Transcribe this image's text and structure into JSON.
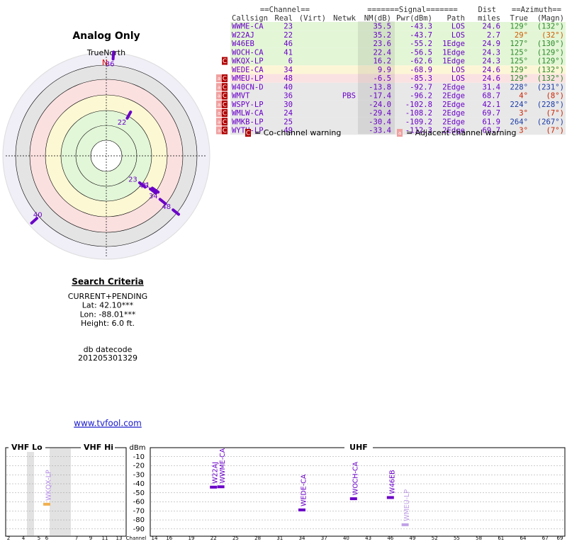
{
  "left": {
    "title": "Analog Only",
    "north_label": "TrueNorth",
    "north": "N",
    "polar": {
      "color": "#6a00c8",
      "points": [
        {
          "label": "36",
          "azimuth": 4,
          "nm": -17.4
        },
        {
          "label": "22",
          "azimuth": 29,
          "nm": 35.2
        },
        {
          "label": "23",
          "azimuth": 129,
          "nm": 35.5
        },
        {
          "label": "46",
          "azimuth": 127,
          "nm": 23.6
        },
        {
          "label": "41",
          "azimuth": 125,
          "nm": 22.4
        },
        {
          "label": "34",
          "azimuth": 129,
          "nm": 9.9
        },
        {
          "label": "48",
          "azimuth": 129,
          "nm": -6.5
        },
        {
          "label": "40",
          "azimuth": 228,
          "nm": -13.8
        }
      ]
    },
    "criteria": {
      "heading": "Search Criteria",
      "lines": [
        "CURRENT+PENDING",
        "Lat: 42.10***",
        "Lon: -88.01***",
        "Height: 6.0 ft."
      ]
    },
    "datecode": {
      "label": "db datecode",
      "value": "201205301329"
    },
    "link": "www.tvfool.com"
  },
  "table": {
    "group_headers": [
      "==Channel==",
      "=======Signal=======",
      "Dist",
      "==Azimuth=="
    ],
    "columns": [
      "Callsign",
      "Real",
      "(Virt)",
      "Netwk",
      "NM(dB)",
      "Pwr(dBm)",
      "Path",
      "miles",
      "True",
      "(Magn)"
    ],
    "rows": [
      {
        "callsign": "WWME-CA",
        "real": "23",
        "nm": "35.5",
        "pwr": "-43.3",
        "path": "LOS",
        "dist": "24.6",
        "true": "129°",
        "magn": "(132°)",
        "bg": "#e3f6d6",
        "az_color": "#2a8a2a"
      },
      {
        "callsign": "W22AJ",
        "real": "22",
        "nm": "35.2",
        "pwr": "-43.7",
        "path": "LOS",
        "dist": "2.7",
        "true": "29°",
        "magn": "(32°)",
        "bg": "#e3f6d6",
        "az_color": "#d05a00"
      },
      {
        "callsign": "W46EB",
        "real": "46",
        "nm": "23.6",
        "pwr": "-55.2",
        "path": "1Edge",
        "dist": "24.9",
        "true": "127°",
        "magn": "(130°)",
        "bg": "#e3f6d6",
        "az_color": "#2a8a2a"
      },
      {
        "callsign": "WOCH-CA",
        "real": "41",
        "nm": "22.4",
        "pwr": "-56.5",
        "path": "1Edge",
        "dist": "24.3",
        "true": "125°",
        "magn": "(129°)",
        "bg": "#e3f6d6",
        "az_color": "#2a8a2a"
      },
      {
        "callsign": "WKQX-LP",
        "real": "6",
        "nm": "16.2",
        "pwr": "-62.6",
        "path": "1Edge",
        "dist": "24.3",
        "true": "125°",
        "magn": "(129°)",
        "bg": "#e3f6d6",
        "az_color": "#2a8a2a",
        "warnings": [
          "C"
        ]
      },
      {
        "callsign": "WEDE-CA",
        "real": "34",
        "nm": "9.9",
        "pwr": "-68.9",
        "path": "LOS",
        "dist": "24.6",
        "true": "129°",
        "magn": "(132°)",
        "bg": "#fdf6d6",
        "az_color": "#2a8a2a"
      },
      {
        "callsign": "WMEU-LP",
        "real": "48",
        "nm": "-6.5",
        "pwr": "-85.3",
        "path": "LOS",
        "dist": "24.6",
        "true": "129°",
        "magn": "(132°)",
        "bg": "#fbe2e2",
        "az_color": "#2a8a2a",
        "warnings": [
          "a",
          "C"
        ]
      },
      {
        "callsign": "W40CN-D",
        "real": "40",
        "nm": "-13.8",
        "pwr": "-92.7",
        "path": "2Edge",
        "dist": "31.4",
        "true": "228°",
        "magn": "(231°)",
        "bg": "#e8e8e8",
        "az_color": "#1a3aa8",
        "warnings": [
          "a",
          "C"
        ]
      },
      {
        "callsign": "WMVT",
        "real": "36",
        "netwk": "PBS",
        "nm": "-17.4",
        "pwr": "-96.2",
        "path": "2Edge",
        "dist": "68.7",
        "true": "4°",
        "magn": "(8°)",
        "bg": "#e8e8e8",
        "az_color": "#cc2200",
        "warnings": [
          "a",
          "C"
        ]
      },
      {
        "callsign": "WSPY-LP",
        "real": "30",
        "nm": "-24.0",
        "pwr": "-102.8",
        "path": "2Edge",
        "dist": "42.1",
        "true": "224°",
        "magn": "(228°)",
        "bg": "#e8e8e8",
        "az_color": "#1a3aa8",
        "warnings": [
          "a",
          "C"
        ]
      },
      {
        "callsign": "WMLW-CA",
        "real": "24",
        "nm": "-29.4",
        "pwr": "-108.2",
        "path": "2Edge",
        "dist": "69.7",
        "true": "3°",
        "magn": "(7°)",
        "bg": "#e8e8e8",
        "az_color": "#cc2200",
        "warnings": [
          "a",
          "C"
        ]
      },
      {
        "callsign": "WMKB-LP",
        "real": "25",
        "nm": "-30.4",
        "pwr": "-109.2",
        "path": "2Edge",
        "dist": "61.9",
        "true": "264°",
        "magn": "(267°)",
        "bg": "#e8e8e8",
        "az_color": "#1a3aa8",
        "warnings": [
          "a",
          "C"
        ]
      },
      {
        "callsign": "WYTU-LP",
        "real": "49",
        "nm": "-33.4",
        "pwr": "-112.3",
        "path": "2Edge",
        "dist": "69.7",
        "true": "3°",
        "magn": "(7°)",
        "bg": "#e8e8e8",
        "az_color": "#cc2200",
        "warnings": [
          "a",
          "C"
        ]
      }
    ],
    "legend": [
      {
        "icon": "C",
        "text": "= Co-channel warning"
      },
      {
        "icon": "a",
        "text": "= Adjacent channel warning"
      }
    ]
  },
  "spectrum": {
    "sections": [
      "VHF Lo",
      "VHF Hi",
      "UHF"
    ],
    "y_label": "dBm",
    "x_label": "Channel",
    "ylim": [
      -98,
      0
    ],
    "yticks": [
      -10,
      -20,
      -30,
      -40,
      -50,
      -60,
      -70,
      -80,
      -90
    ],
    "vhf_ticks": [
      2,
      4,
      5,
      6,
      7,
      9,
      11,
      13
    ],
    "uhf_xlim": [
      14,
      69
    ],
    "uhf_ticks": [
      14,
      16,
      19,
      22,
      25,
      28,
      31,
      34,
      37,
      40,
      43,
      46,
      49,
      52,
      55,
      58,
      61,
      64,
      67,
      69
    ],
    "stations": [
      {
        "callsign": "WKQX-LP",
        "channel": 6,
        "dbm": -62.6,
        "color": "#f0b050",
        "label_color": "#b48ce6"
      },
      {
        "callsign": "W22AJ",
        "channel": 22,
        "dbm": -43.7,
        "color": "#6a00c8",
        "label_color": "#6a00c8"
      },
      {
        "callsign": "WWME-CA",
        "channel": 23,
        "dbm": -43.3,
        "color": "#6a00c8",
        "label_color": "#6a00c8"
      },
      {
        "callsign": "WEDE-CA",
        "channel": 34,
        "dbm": -68.9,
        "color": "#6a00c8",
        "label_color": "#6a00c8"
      },
      {
        "callsign": "WOCH-CA",
        "channel": 41,
        "dbm": -56.5,
        "color": "#6a00c8",
        "label_color": "#6a00c8"
      },
      {
        "callsign": "W46EB",
        "channel": 46,
        "dbm": -55.2,
        "color": "#6a00c8",
        "label_color": "#6a00c8"
      },
      {
        "callsign": "WMEU-LP",
        "channel": 48,
        "dbm": -85.3,
        "color": "#c0a0e6",
        "label_color": "#c0a0e6"
      }
    ]
  }
}
